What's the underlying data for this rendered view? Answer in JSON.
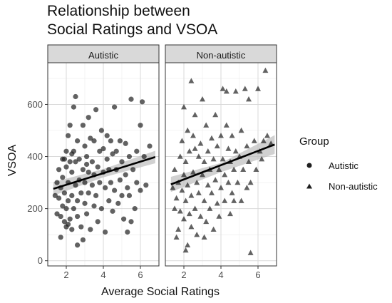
{
  "chart_data": {
    "type": "scatter",
    "title_lines": [
      "Relationship between",
      "Social Ratings and VSOA"
    ],
    "xlabel": "Average Social Ratings",
    "ylabel": "VSOA",
    "xlim": [
      1,
      7
    ],
    "ylim": [
      -20,
      760
    ],
    "x_ticks": [
      2,
      4,
      6
    ],
    "y_ticks": [
      0,
      200,
      400,
      600
    ],
    "grid": true,
    "legend": {
      "title": "Group",
      "position": "right",
      "entries": [
        "Autistic",
        "Non-autistic"
      ]
    },
    "colors": {
      "point": "#1f1f1f",
      "band": "#bdbdbd",
      "strip_bg": "#d9d9d9",
      "grid": "#d9d9d9"
    },
    "panels": [
      {
        "name": "Autistic",
        "marker": "circle",
        "fit": {
          "x": [
            1.3,
            6.8
          ],
          "y": [
            276,
            398
          ]
        },
        "band": {
          "x": [
            1.3,
            4.0,
            6.8
          ],
          "upper": [
            302,
            352,
            422
          ],
          "lower": [
            250,
            320,
            374
          ]
        },
        "points": [
          [
            1.4,
            250
          ],
          [
            1.5,
            180
          ],
          [
            1.5,
            300
          ],
          [
            1.6,
            240
          ],
          [
            1.6,
            350
          ],
          [
            1.7,
            170
          ],
          [
            1.7,
            280
          ],
          [
            1.8,
            210
          ],
          [
            1.8,
            320
          ],
          [
            1.8,
            390
          ],
          [
            1.9,
            150
          ],
          [
            1.9,
            260
          ],
          [
            2.0,
            130
          ],
          [
            2.0,
            200
          ],
          [
            2.0,
            360
          ],
          [
            2.0,
            420
          ],
          [
            2.1,
            140
          ],
          [
            2.1,
            230
          ],
          [
            2.1,
            300
          ],
          [
            2.1,
            480
          ],
          [
            2.2,
            160
          ],
          [
            2.2,
            380
          ],
          [
            2.2,
            520
          ],
          [
            2.3,
            120
          ],
          [
            2.3,
            250
          ],
          [
            2.3,
            340
          ],
          [
            2.4,
            200
          ],
          [
            2.4,
            420
          ],
          [
            2.4,
            590
          ],
          [
            2.5,
            290
          ],
          [
            2.5,
            380
          ],
          [
            2.5,
            630
          ],
          [
            2.6,
            170
          ],
          [
            2.6,
            230
          ],
          [
            2.6,
            460
          ],
          [
            2.7,
            310
          ],
          [
            2.7,
            390
          ],
          [
            2.8,
            260
          ],
          [
            2.8,
            130
          ],
          [
            2.9,
            80
          ],
          [
            2.9,
            350
          ],
          [
            2.9,
            520
          ],
          [
            3.0,
            220
          ],
          [
            3.0,
            300
          ],
          [
            3.0,
            440
          ],
          [
            3.1,
            180
          ],
          [
            3.1,
            400
          ],
          [
            3.2,
            260
          ],
          [
            3.2,
            340
          ],
          [
            3.2,
            550
          ],
          [
            3.3,
            120
          ],
          [
            3.3,
            470
          ],
          [
            3.4,
            290
          ],
          [
            3.4,
            380
          ],
          [
            3.5,
            210
          ],
          [
            3.5,
            330
          ],
          [
            3.5,
            460
          ],
          [
            3.6,
            250
          ],
          [
            3.6,
            580
          ],
          [
            3.7,
            150
          ],
          [
            3.7,
            360
          ],
          [
            3.8,
            300
          ],
          [
            3.8,
            420
          ],
          [
            3.9,
            200
          ],
          [
            3.9,
            500
          ],
          [
            4.0,
            340
          ],
          [
            4.0,
            430
          ],
          [
            4.1,
            110
          ],
          [
            4.1,
            280
          ],
          [
            4.2,
            390
          ],
          [
            4.2,
            480
          ],
          [
            4.3,
            230
          ],
          [
            4.3,
            350
          ],
          [
            4.4,
            300
          ],
          [
            4.4,
            460
          ],
          [
            4.5,
            190
          ],
          [
            4.5,
            410
          ],
          [
            4.6,
            270
          ],
          [
            4.6,
            590
          ],
          [
            4.7,
            350
          ],
          [
            4.7,
            420
          ],
          [
            4.8,
            220
          ],
          [
            4.9,
            310
          ],
          [
            4.9,
            460
          ],
          [
            5.0,
            250
          ],
          [
            5.0,
            380
          ],
          [
            5.1,
            160
          ],
          [
            5.2,
            330
          ],
          [
            5.2,
            450
          ],
          [
            5.3,
            110
          ],
          [
            5.3,
            280
          ],
          [
            5.4,
            250
          ],
          [
            5.4,
            400
          ],
          [
            5.5,
            620
          ],
          [
            5.6,
            350
          ],
          [
            5.7,
            200
          ],
          [
            5.8,
            300
          ],
          [
            5.8,
            420
          ],
          [
            6.0,
            520
          ],
          [
            6.0,
            270
          ],
          [
            6.1,
            610
          ],
          [
            6.2,
            400
          ],
          [
            6.3,
            290
          ],
          [
            6.5,
            440
          ],
          [
            1.7,
            90
          ],
          [
            2.6,
            60
          ],
          [
            1.9,
            390
          ],
          [
            2.3,
            410
          ],
          [
            3.1,
            370
          ],
          [
            5.5,
            150
          ]
        ]
      },
      {
        "name": "Non-autistic",
        "marker": "triangle",
        "fit": {
          "x": [
            1.3,
            6.9
          ],
          "y": [
            293,
            446
          ]
        },
        "band": {
          "x": [
            1.3,
            4.0,
            6.9
          ],
          "upper": [
            322,
            375,
            482
          ],
          "lower": [
            264,
            340,
            410
          ]
        },
        "points": [
          [
            1.4,
            280
          ],
          [
            1.5,
            200
          ],
          [
            1.5,
            350
          ],
          [
            1.6,
            240
          ],
          [
            1.7,
            300
          ],
          [
            1.7,
            120
          ],
          [
            1.8,
            400
          ],
          [
            1.8,
            190
          ],
          [
            1.9,
            270
          ],
          [
            1.9,
            460
          ],
          [
            2.0,
            160
          ],
          [
            2.0,
            330
          ],
          [
            2.0,
            590
          ],
          [
            2.1,
            230
          ],
          [
            2.1,
            380
          ],
          [
            2.2,
            60
          ],
          [
            2.2,
            290
          ],
          [
            2.2,
            500
          ],
          [
            2.3,
            180
          ],
          [
            2.3,
            420
          ],
          [
            2.4,
            250
          ],
          [
            2.4,
            130
          ],
          [
            2.4,
            690
          ],
          [
            2.5,
            340
          ],
          [
            2.5,
            480
          ],
          [
            2.6,
            200
          ],
          [
            2.6,
            560
          ],
          [
            2.7,
            300
          ],
          [
            2.7,
            100
          ],
          [
            2.8,
            400
          ],
          [
            2.8,
            260
          ],
          [
            2.9,
            170
          ],
          [
            2.9,
            450
          ],
          [
            3.0,
            330
          ],
          [
            3.0,
            620
          ],
          [
            3.1,
            230
          ],
          [
            3.1,
            380
          ],
          [
            3.2,
            150
          ],
          [
            3.2,
            520
          ],
          [
            3.3,
            290
          ],
          [
            3.3,
            420
          ],
          [
            3.4,
            200
          ],
          [
            3.4,
            350
          ],
          [
            3.5,
            470
          ],
          [
            3.5,
            260
          ],
          [
            3.6,
            120
          ],
          [
            3.6,
            390
          ],
          [
            3.7,
            310
          ],
          [
            3.7,
            560
          ],
          [
            3.8,
            220
          ],
          [
            3.8,
            440
          ],
          [
            3.9,
            350
          ],
          [
            3.9,
            170
          ],
          [
            4.0,
            280
          ],
          [
            4.0,
            480
          ],
          [
            4.1,
            390
          ],
          [
            4.1,
            660
          ],
          [
            4.2,
            230
          ],
          [
            4.2,
            330
          ],
          [
            4.3,
            520
          ],
          [
            4.3,
            650
          ],
          [
            4.4,
            300
          ],
          [
            4.4,
            430
          ],
          [
            4.5,
            180
          ],
          [
            4.5,
            380
          ],
          [
            4.6,
            480
          ],
          [
            4.6,
            260
          ],
          [
            4.7,
            350
          ],
          [
            4.8,
            420
          ],
          [
            4.8,
            650
          ],
          [
            4.9,
            300
          ],
          [
            5.0,
            400
          ],
          [
            5.1,
            230
          ],
          [
            5.1,
            500
          ],
          [
            5.2,
            350
          ],
          [
            5.3,
            660
          ],
          [
            5.4,
            280
          ],
          [
            5.4,
            440
          ],
          [
            5.5,
            380
          ],
          [
            5.6,
            300
          ],
          [
            5.6,
            30
          ],
          [
            5.8,
            460
          ],
          [
            5.9,
            350
          ],
          [
            6.0,
            660
          ],
          [
            6.1,
            420
          ],
          [
            6.2,
            390
          ],
          [
            6.3,
            460
          ],
          [
            6.4,
            730
          ],
          [
            6.5,
            480
          ],
          [
            6.7,
            450
          ],
          [
            1.6,
            90
          ],
          [
            2.1,
            40
          ],
          [
            2.6,
            430
          ],
          [
            3.1,
            90
          ],
          [
            4.7,
            230
          ],
          [
            5.5,
            620
          ]
        ]
      }
    ]
  }
}
